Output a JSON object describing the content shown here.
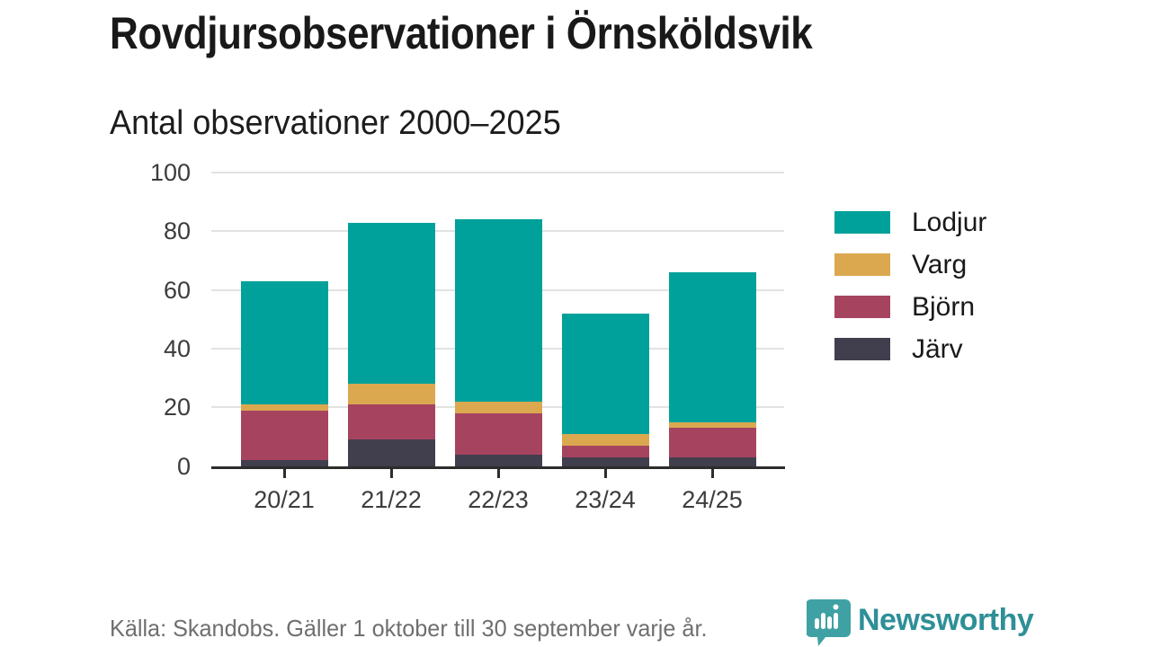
{
  "title": "Rovdjursobservationer i Örnsköldsvik",
  "subtitle": "Antal observationer 2000–2025",
  "chart_data": {
    "type": "bar",
    "stacked": true,
    "title": "Rovdjursobservationer i Örnsköldsvik",
    "subtitle": "Antal observationer 2000–2025",
    "categories": [
      "20/21",
      "21/22",
      "22/23",
      "23/24",
      "24/25"
    ],
    "series": [
      {
        "name": "Järv",
        "color": "#413e4d",
        "values": [
          2,
          9,
          4,
          3,
          3
        ]
      },
      {
        "name": "Björn",
        "color": "#a64460",
        "values": [
          17,
          12,
          14,
          4,
          10
        ]
      },
      {
        "name": "Varg",
        "color": "#dba850",
        "values": [
          2,
          7,
          4,
          4,
          2
        ]
      },
      {
        "name": "Lodjur",
        "color": "#00a19a",
        "values": [
          42,
          55,
          62,
          41,
          51
        ]
      }
    ],
    "totals": [
      63,
      83,
      84,
      52,
      66
    ],
    "ylim": [
      0,
      100
    ],
    "yticks": [
      0,
      20,
      40,
      60,
      80,
      100
    ],
    "grid": true,
    "legend_position": "right",
    "legend_order": [
      "Lodjur",
      "Varg",
      "Björn",
      "Järv"
    ],
    "xlabel": "",
    "ylabel": ""
  },
  "footer": {
    "source": "Källa: Skandobs. Gäller 1 oktober till 30 september varje år."
  },
  "logo": {
    "text": "Newsworthy",
    "bubble_color": "#3fa1a4",
    "text_color": "#2e8f97"
  },
  "style_colors": {
    "gridline": "#e2e2e2",
    "axis": "#2d2d2d",
    "tick_label": "#3c3c3c",
    "text": "#191919",
    "footer_text": "#6f6f6f"
  }
}
